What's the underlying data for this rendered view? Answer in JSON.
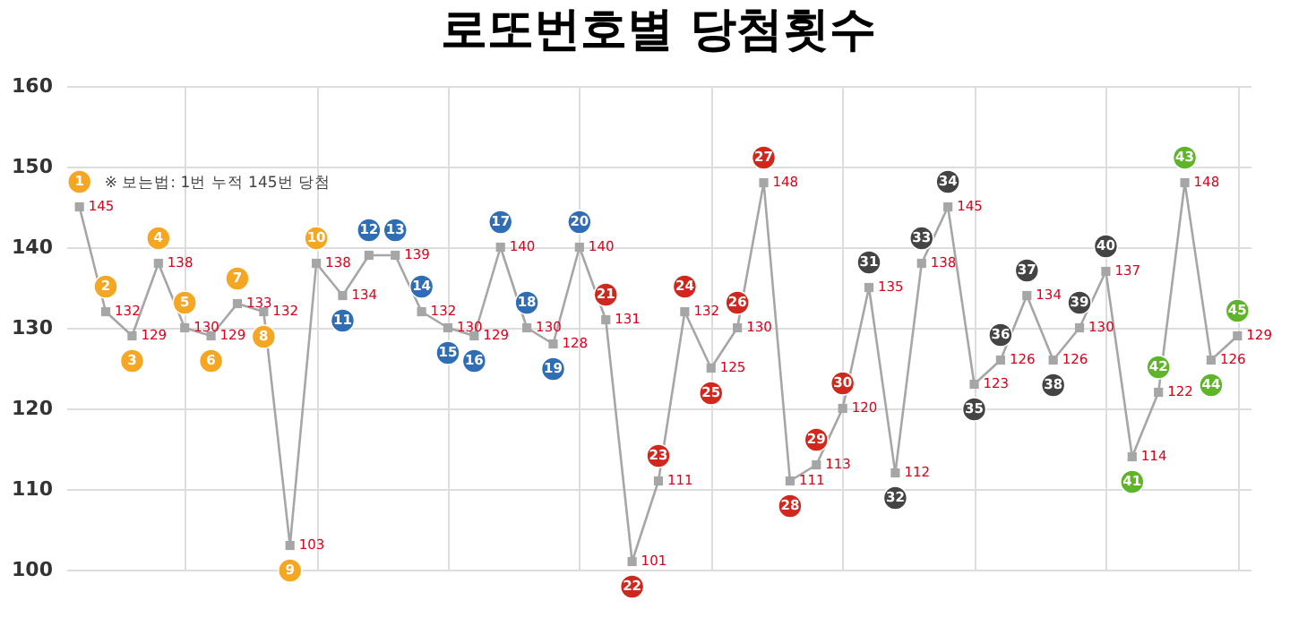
{
  "chart_data": {
    "type": "line",
    "title": "로또번호별 당첨횟수",
    "categories": [
      "1",
      "2",
      "3",
      "4",
      "5",
      "6",
      "7",
      "8",
      "9",
      "10",
      "11",
      "12",
      "13",
      "14",
      "15",
      "16",
      "17",
      "18",
      "19",
      "20",
      "21",
      "22",
      "23",
      "24",
      "25",
      "26",
      "27",
      "28",
      "29",
      "30",
      "31",
      "32",
      "33",
      "34",
      "35",
      "36",
      "37",
      "38",
      "39",
      "40",
      "41",
      "42",
      "43",
      "44",
      "45"
    ],
    "series": [
      {
        "color": "#a6a6a6",
        "values": [
          145,
          132,
          129,
          138,
          130,
          129,
          133,
          132,
          103,
          138,
          134,
          139,
          139,
          132,
          130,
          129,
          140,
          130,
          128,
          140,
          131,
          101,
          111,
          132,
          125,
          130,
          148,
          111,
          113,
          120,
          135,
          112,
          138,
          145,
          123,
          126,
          134,
          126,
          130,
          137,
          114,
          122,
          148,
          126,
          129
        ],
        "value_labels": [
          "145",
          "132",
          "129",
          "138",
          "130",
          "129",
          "133",
          "132",
          "103",
          "138",
          "134",
          null,
          "139",
          "132",
          "130",
          "129",
          "140",
          "130",
          "128",
          "140",
          "131",
          "101",
          "111",
          "132",
          "125",
          "130",
          "148",
          "111",
          "113",
          "120",
          "135",
          "112",
          "138",
          "145",
          "123",
          "126",
          "134",
          "126",
          "130",
          "137",
          "114",
          "122",
          "148",
          "126",
          "129"
        ]
      }
    ],
    "colors": [
      "#f5a623",
      "#f5a623",
      "#f5a623",
      "#f5a623",
      "#f5a623",
      "#f5a623",
      "#f5a623",
      "#f5a623",
      "#f5a623",
      "#f5a623",
      "#2f6db5",
      "#2f6db5",
      "#2f6db5",
      "#2f6db5",
      "#2f6db5",
      "#2f6db5",
      "#2f6db5",
      "#2f6db5",
      "#2f6db5",
      "#2f6db5",
      "#d0281c",
      "#d0281c",
      "#d0281c",
      "#d0281c",
      "#d0281c",
      "#d0281c",
      "#d0281c",
      "#d0281c",
      "#d0281c",
      "#d0281c",
      "#444444",
      "#444444",
      "#444444",
      "#444444",
      "#444444",
      "#444444",
      "#444444",
      "#444444",
      "#444444",
      "#444444",
      "#5fb52a",
      "#5fb52a",
      "#5fb52a",
      "#5fb52a",
      "#5fb52a"
    ],
    "ylim": [
      100,
      160
    ],
    "yticks": [
      100,
      110,
      120,
      130,
      140,
      150,
      160
    ],
    "grid": true,
    "marker": "square",
    "annotations": [
      {
        "text": "※ 보는법: 1번 누적 145번 당첨",
        "x": "1",
        "y": 145
      }
    ]
  }
}
